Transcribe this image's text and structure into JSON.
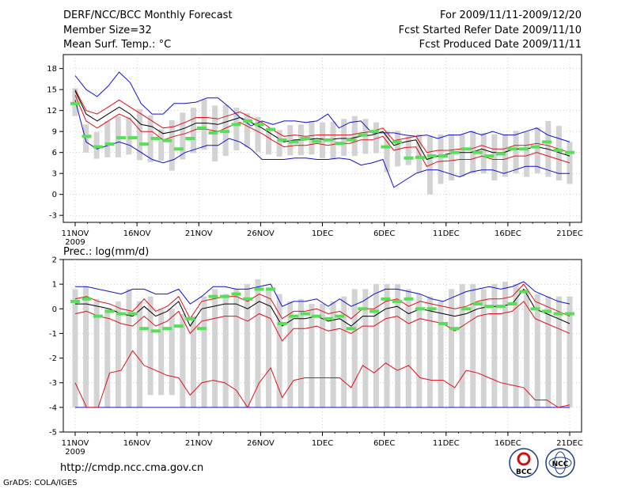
{
  "header": {
    "left_title": "DERF/NCC/BCC Monthly Forecast",
    "member_size": "Member Size=32",
    "variable": "Mean Surf. Temp.: °C",
    "right_period": "For 2009/11/11-2009/12/20",
    "right_refer": "Fcst Started Refer Date 2009/11/10",
    "right_produced": "Fcst Produced Date 2009/11/11"
  },
  "footer": {
    "url": "http://cmdp.ncc.cma.gov.cn",
    "grads": "GrADS: COLA/IGES",
    "logo_bcc": "BCC",
    "logo_ncc": "NCC"
  },
  "colors": {
    "box": "#d3d3d3",
    "median": "#000000",
    "inner": "#e0101a",
    "outer": "#1010d0",
    "obs": "#55e055"
  },
  "chart_data": [
    {
      "type": "line",
      "title": "Mean Surf. Temp.: °C",
      "ylim": [
        -4,
        20
      ],
      "yticks": [
        -3,
        0,
        3,
        6,
        9,
        12,
        15,
        18
      ],
      "xlabels": [
        "11NOV",
        "16NOV",
        "21NOV",
        "26NOV",
        "1DEC",
        "6DEC",
        "11DEC",
        "16DEC",
        "21DEC"
      ],
      "xsub": "2009",
      "series": [
        {
          "name": "box_low",
          "values": [
            11.2,
            6.0,
            5.1,
            5.3,
            5.3,
            5.7,
            4.9,
            4.6,
            4.8,
            3.4,
            5.0,
            5.9,
            6.4,
            4.7,
            5.5,
            6.3,
            6.7,
            6.1,
            5.7,
            5.4,
            5.6,
            5.6,
            5.7,
            5.2,
            5.0,
            5.5,
            5.5,
            5.8,
            5.9,
            3.2,
            4.0,
            4.2,
            3.1,
            0.0,
            1.5,
            2.0,
            2.5,
            3.0,
            3.0,
            2.0,
            2.5,
            3.0,
            2.5,
            3.0,
            2.5,
            2.0,
            1.5
          ]
        },
        {
          "name": "box_high",
          "values": [
            15.2,
            10.0,
            8.9,
            10.5,
            11.2,
            11.0,
            12.2,
            11.3,
            9.3,
            10.6,
            11.7,
            12.4,
            13.6,
            12.7,
            12.8,
            12.4,
            11.6,
            11.1,
            9.5,
            9.2,
            9.9,
            10.0,
            10.5,
            10.3,
            10.4,
            10.8,
            11.2,
            10.8,
            10.3,
            9.1,
            9.1,
            8.3,
            8.6,
            8.3,
            8.6,
            8.6,
            8.6,
            9.1,
            8.8,
            8.6,
            8.6,
            9.1,
            9.0,
            9.6,
            10.5,
            9.8,
            7.5
          ]
        },
        {
          "name": "obs",
          "values": [
            13.0,
            8.3,
            6.8,
            7.2,
            8.1,
            8.1,
            7.2,
            8.0,
            7.7,
            6.5,
            8.0,
            9.5,
            8.8,
            9.0,
            10.0,
            10.5,
            10.0,
            9.3,
            7.8,
            7.5,
            8.0,
            7.6,
            7.8,
            7.3,
            7.8,
            8.5,
            9.0,
            6.8,
            7.5,
            5.2,
            5.3,
            5.5,
            5.5,
            6.0,
            6.5,
            6.0,
            5.5,
            5.8,
            6.5,
            6.5,
            6.8,
            7.5,
            6.3,
            6.0
          ]
        },
        {
          "name": "median",
          "values": [
            14.8,
            11.5,
            10.5,
            11.5,
            12.5,
            11.5,
            10.0,
            9.7,
            8.7,
            9.0,
            9.5,
            10.2,
            10.2,
            10.0,
            10.5,
            11.0,
            10.3,
            9.5,
            8.5,
            7.5,
            7.8,
            7.8,
            8.0,
            7.8,
            8.0,
            8.0,
            8.3,
            8.5,
            9.0,
            7.0,
            7.5,
            7.8,
            5.0,
            5.5,
            5.8,
            6.0,
            6.0,
            6.5,
            6.0,
            6.0,
            6.5,
            6.5,
            6.8,
            6.5,
            6.0,
            5.5
          ]
        },
        {
          "name": "inner_high",
          "values": [
            15.0,
            12.0,
            11.5,
            12.5,
            13.5,
            12.5,
            11.5,
            10.5,
            9.5,
            9.7,
            10.3,
            11.0,
            11.0,
            10.8,
            11.3,
            11.8,
            11.0,
            10.3,
            9.2,
            8.3,
            8.5,
            8.3,
            8.5,
            8.5,
            8.5,
            8.5,
            8.8,
            9.0,
            9.5,
            7.7,
            8.0,
            8.3,
            6.0,
            6.3,
            6.3,
            6.5,
            6.5,
            7.0,
            6.5,
            6.5,
            7.0,
            7.0,
            7.3,
            7.0,
            6.5,
            6.0
          ]
        },
        {
          "name": "inner_low",
          "values": [
            14.2,
            10.5,
            9.5,
            10.5,
            11.5,
            10.8,
            9.0,
            9.0,
            7.8,
            8.3,
            8.7,
            9.3,
            9.3,
            9.0,
            9.7,
            10.3,
            9.5,
            8.7,
            7.7,
            6.8,
            7.0,
            7.0,
            7.3,
            7.0,
            7.3,
            7.3,
            7.8,
            7.8,
            8.3,
            6.3,
            6.7,
            6.8,
            4.0,
            4.7,
            4.8,
            5.0,
            5.0,
            5.5,
            5.0,
            5.0,
            5.5,
            5.5,
            6.0,
            5.5,
            5.0,
            4.5
          ]
        },
        {
          "name": "outer_high",
          "values": [
            17.0,
            15.0,
            14.0,
            15.5,
            17.5,
            16.0,
            13.0,
            11.5,
            11.5,
            13.0,
            13.0,
            13.2,
            13.8,
            13.8,
            12.5,
            11.0,
            9.8,
            10.5,
            10.0,
            10.5,
            10.5,
            10.3,
            10.5,
            11.5,
            9.5,
            10.3,
            10.5,
            8.8,
            8.8,
            8.8,
            8.5,
            8.3,
            8.5,
            8.0,
            8.5,
            8.5,
            9.0,
            8.5,
            9.0,
            8.5,
            8.5,
            9.0,
            9.5,
            8.5,
            8.0,
            7.5
          ]
        },
        {
          "name": "outer_low",
          "values": [
            13.5,
            7.5,
            6.5,
            7.0,
            7.5,
            7.0,
            6.0,
            5.0,
            4.5,
            5.0,
            6.0,
            6.5,
            7.0,
            7.0,
            8.0,
            7.5,
            6.5,
            5.0,
            5.0,
            5.0,
            5.2,
            5.2,
            5.0,
            5.0,
            5.2,
            5.0,
            4.2,
            4.5,
            5.0,
            1.0,
            2.0,
            3.0,
            3.5,
            3.5,
            3.0,
            2.5,
            3.2,
            3.5,
            3.5,
            3.0,
            3.5,
            4.0,
            4.0,
            3.5,
            3.0,
            3.0
          ]
        }
      ]
    },
    {
      "type": "line",
      "title": "Prec.: log(mm/d)",
      "ylim": [
        -5,
        2
      ],
      "yticks": [
        -5,
        -4,
        -3,
        -2,
        -1,
        0,
        1,
        2
      ],
      "xlabels": [
        "11NOV",
        "16NOV",
        "21NOV",
        "26NOV",
        "1DEC",
        "6DEC",
        "11DEC",
        "16DEC",
        "21DEC"
      ],
      "xsub": "2009",
      "series": [
        {
          "name": "box_low",
          "values": [
            -4,
            -4,
            -4,
            -4,
            -4,
            -4,
            -4,
            -3.5,
            -3.5,
            -3.5,
            -4,
            -4,
            -4,
            -4,
            -4,
            -4,
            -4,
            -4,
            -4,
            -4,
            -4,
            -4,
            -4,
            -4,
            -4,
            -4,
            -4,
            -4,
            -4,
            -4,
            -4,
            -4,
            -4,
            -4,
            -4,
            -4,
            -4,
            -4,
            -4,
            -4,
            -4,
            -4,
            -4,
            -4,
            -4,
            -4,
            -4,
            -4
          ]
        },
        {
          "name": "box_high",
          "values": [
            0.8,
            0.9,
            0.4,
            0.0,
            0.3,
            0.8,
            0.3,
            0.5,
            0.0,
            0.0,
            -0.2,
            -0.3,
            0.5,
            0.8,
            0.6,
            0.8,
            1.0,
            1.2,
            0.8,
            0.6,
            0.3,
            0.4,
            0.2,
            0.2,
            0.3,
            0.5,
            0.8,
            0.8,
            1.0,
            1.0,
            1.0,
            0.8,
            0.6,
            0.5,
            0.3,
            0.8,
            1.0,
            1.0,
            0.8,
            1.0,
            1.1,
            1.0,
            0.8,
            0.6,
            0.5,
            0.5,
            0.5
          ]
        },
        {
          "name": "obs",
          "values": [
            0.3,
            0.4,
            -0.3,
            -0.1,
            -0.2,
            -0.2,
            -0.8,
            -0.9,
            -0.8,
            -0.7,
            -0.4,
            -0.8,
            0.5,
            0.5,
            0.6,
            0.4,
            0.8,
            0.8,
            -0.6,
            -0.3,
            -0.2,
            -0.3,
            -0.4,
            -0.3,
            -0.8,
            0.0,
            -0.1,
            0.4,
            0.3,
            0.4,
            0.0,
            0.0,
            -0.6,
            -0.8,
            0.0,
            0.2,
            0.1,
            0.1,
            0.2,
            0.7,
            0.0,
            -0.1,
            -0.2,
            -0.2
          ]
        },
        {
          "name": "median",
          "values": [
            0.2,
            0.2,
            0.1,
            0.0,
            -0.2,
            -0.3,
            0.1,
            -0.3,
            -0.1,
            0.3,
            -0.7,
            0.0,
            0.1,
            0.2,
            0.2,
            0.0,
            0.3,
            0.1,
            -0.7,
            -0.4,
            -0.4,
            -0.3,
            -0.5,
            -0.4,
            -0.7,
            -0.3,
            -0.3,
            0.0,
            0.1,
            -0.2,
            0.0,
            -0.1,
            -0.2,
            -0.3,
            -0.2,
            0.0,
            0.1,
            0.1,
            0.2,
            0.8,
            0.0,
            -0.2,
            -0.4,
            -0.6
          ]
        },
        {
          "name": "inner_high",
          "values": [
            0.4,
            0.5,
            0.3,
            0.2,
            0.0,
            -0.1,
            0.4,
            -0.1,
            0.1,
            0.5,
            -0.4,
            0.3,
            0.4,
            0.5,
            0.5,
            0.3,
            0.6,
            0.4,
            -0.4,
            -0.1,
            -0.1,
            0.0,
            -0.2,
            -0.1,
            -0.4,
            0.0,
            0.0,
            0.3,
            0.4,
            0.1,
            0.3,
            0.2,
            0.1,
            0.0,
            0.1,
            0.3,
            0.4,
            0.4,
            0.5,
            1.0,
            0.3,
            0.1,
            -0.1,
            -0.3
          ]
        },
        {
          "name": "inner_low",
          "values": [
            -0.2,
            -0.1,
            -0.3,
            -0.4,
            -0.6,
            -0.7,
            -0.3,
            -0.7,
            -0.5,
            -0.1,
            -1.0,
            -0.5,
            -0.4,
            -0.3,
            -0.3,
            -0.5,
            -0.2,
            -0.4,
            -1.3,
            -0.8,
            -0.8,
            -0.7,
            -0.9,
            -0.8,
            -1.0,
            -0.7,
            -0.7,
            -0.4,
            -0.3,
            -0.6,
            -0.4,
            -0.5,
            -0.6,
            -0.9,
            -0.6,
            -0.3,
            -0.2,
            -0.2,
            -0.1,
            0.3,
            -0.4,
            -0.6,
            -0.8,
            -1.0
          ]
        },
        {
          "name": "outer_high",
          "values": [
            0.9,
            0.9,
            0.8,
            0.7,
            0.6,
            0.8,
            0.8,
            0.6,
            0.6,
            0.8,
            0.2,
            0.5,
            0.9,
            0.9,
            0.8,
            0.8,
            0.9,
            1.0,
            0.1,
            0.3,
            0.3,
            0.4,
            0.1,
            0.4,
            0.1,
            0.3,
            0.6,
            0.8,
            0.8,
            0.7,
            0.6,
            0.4,
            0.3,
            0.5,
            0.7,
            0.8,
            0.9,
            0.8,
            0.9,
            1.1,
            0.7,
            0.5,
            0.3,
            0.2
          ]
        },
        {
          "name": "outer_low",
          "values": [
            -3.0,
            -4.0,
            -4.0,
            -2.6,
            -2.5,
            -1.7,
            -2.3,
            -2.5,
            -2.7,
            -2.8,
            -3.5,
            -3.0,
            -2.9,
            -3.0,
            -3.3,
            -4.0,
            -3.0,
            -2.4,
            -3.6,
            -2.9,
            -2.8,
            -2.8,
            -2.8,
            -2.8,
            -3.2,
            -2.3,
            -2.6,
            -2.2,
            -2.5,
            -2.3,
            -2.8,
            -2.9,
            -2.9,
            -3.2,
            -2.5,
            -2.6,
            -2.8,
            -3.0,
            -3.1,
            -3.2,
            -3.7,
            -3.7,
            -4.0,
            -3.9
          ]
        },
        {
          "name": "baseline",
          "values": [
            -4.0,
            -4.0,
            -4.0,
            -4.0,
            -4.0,
            -4.0,
            -4.0,
            -4.0,
            -4.0,
            -4.0,
            -4.0,
            -4.0,
            -4.0,
            -4.0,
            -4.0,
            -4.0,
            -4.0,
            -4.0,
            -4.0,
            -4.0,
            -4.0,
            -4.0,
            -4.0,
            -4.0,
            -4.0,
            -4.0,
            -4.0,
            -4.0,
            -4.0,
            -4.0,
            -4.0,
            -4.0,
            -4.0,
            -4.0,
            -4.0,
            -4.0,
            -4.0,
            -4.0,
            -4.0,
            -4.0,
            -4.0,
            -4.0,
            -4.0,
            -4.0
          ]
        }
      ]
    }
  ]
}
